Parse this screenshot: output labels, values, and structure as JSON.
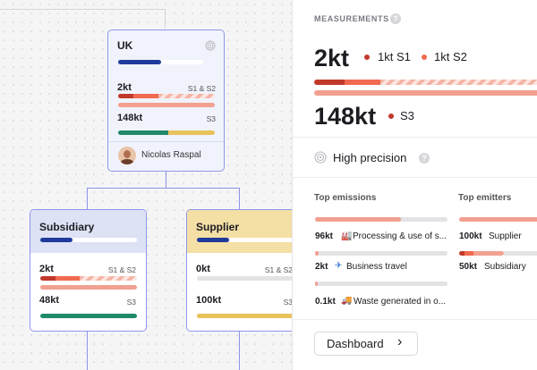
{
  "colors": {
    "navy": "#1f3a9a",
    "s1": "#c0392b",
    "s2": "#f28c7a",
    "s3": "#f2a090",
    "green": "#1f8a6a",
    "gold": "#e8c25c"
  },
  "nodes": {
    "uk": {
      "title": "UK",
      "precision_icon": "fingerprint-icon",
      "scope12_value": "2kt",
      "scope12_tag": "S1 & S2",
      "scope3_value": "148kt",
      "scope3_tag": "S3",
      "owner": "Nicolas Raspal",
      "progress": 0.5
    },
    "subsidiary": {
      "title": "Subsidiary",
      "scope12_value": "2kt",
      "scope12_tag": "S1 & S2",
      "scope3_value": "48kt",
      "scope3_tag": "S3",
      "progress": 0.33
    },
    "supplier": {
      "title": "Supplier",
      "scope12_value": "0kt",
      "scope12_tag": "S1 & S2",
      "scope3_value": "100kt",
      "scope3_tag": "S3",
      "progress": 0.33
    }
  },
  "panel": {
    "header": "MEASUREMENTS",
    "scope12_total": "2kt",
    "s1_label": "1kt S1",
    "s2_label": "1kt S2",
    "scope3_total": "148kt",
    "s3_label": "S3",
    "precision_label": "High precision",
    "top_emissions": {
      "title": "Top emissions",
      "items": [
        {
          "value": "96kt",
          "icon": "factory-icon",
          "label": "Processing & use of s...",
          "share": 0.65
        },
        {
          "value": "2kt",
          "icon": "airplane-icon",
          "label": "Business travel",
          "share": 0.02
        },
        {
          "value": "0.1kt",
          "icon": "truck-icon",
          "label": "Waste generated in o...",
          "share": 0.01
        }
      ]
    },
    "top_emitters": {
      "title": "Top emitters",
      "items": [
        {
          "value": "100kt",
          "label": "Supplier"
        },
        {
          "value": "50kt",
          "label": "Subsidiary"
        }
      ]
    },
    "dashboard_button": "Dashboard",
    "chevron": "›"
  }
}
